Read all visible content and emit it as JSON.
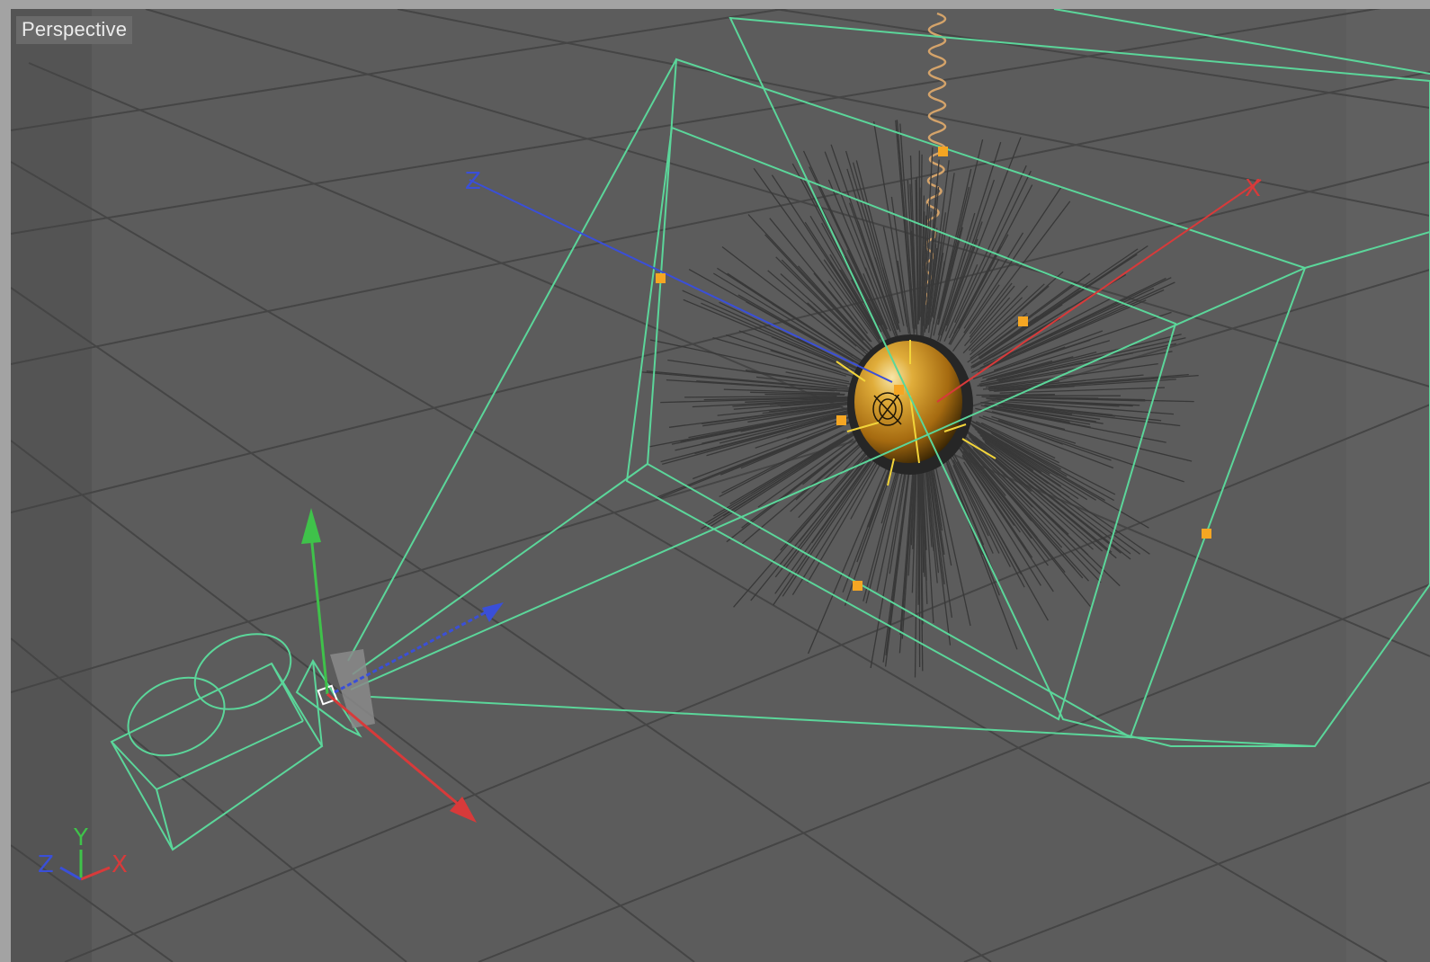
{
  "viewport": {
    "label": "Perspective",
    "background_color": "#5c5c5c",
    "grid_color": "#4a4a4a",
    "wireframe_color": "#5bd69a"
  },
  "axis_indicator": {
    "z_label": "Z",
    "y_label": "Y",
    "x_label": "X",
    "z_color": "#3a4fd8",
    "y_color": "#3fc24a",
    "x_color": "#d83a3a"
  },
  "scene_objects": {
    "camera": {
      "icon": "camera-icon"
    },
    "light": {
      "icon": "light-bulb-icon"
    },
    "hair_sphere": {
      "color": "#c8901e"
    },
    "spring": {
      "color": "#d4a36a"
    }
  },
  "handle_color": "#f5a623"
}
